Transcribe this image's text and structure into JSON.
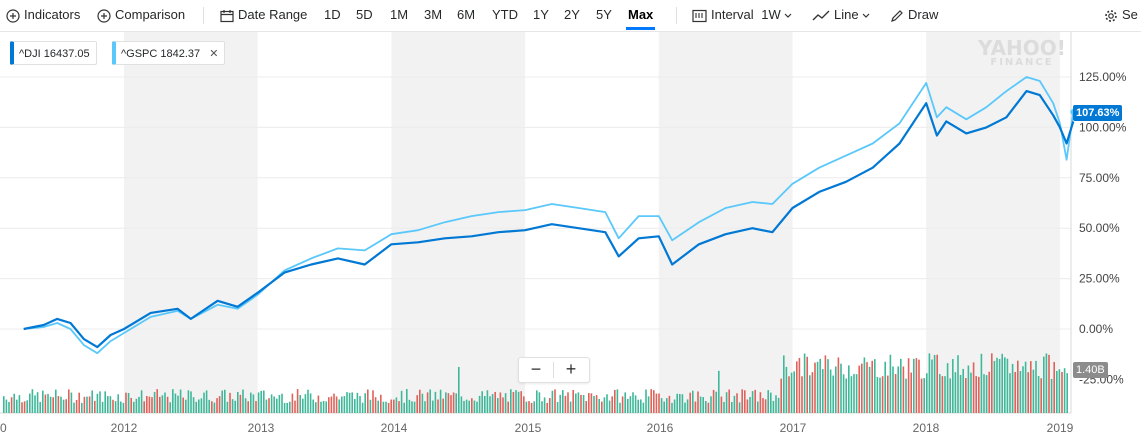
{
  "toolbar": {
    "indicators_label": "Indicators",
    "comparison_label": "Comparison",
    "date_range_label": "Date Range",
    "ranges": [
      "1D",
      "5D",
      "1M",
      "3M",
      "6M",
      "YTD",
      "1Y",
      "2Y",
      "5Y",
      "Max"
    ],
    "active_range": "Max",
    "interval_label": "Interval",
    "interval_value": "1W",
    "chart_type_label": "Line",
    "draw_label": "Draw",
    "settings_label": "Se"
  },
  "watermark": {
    "line1": "YAHOO!",
    "line2": "FINANCE"
  },
  "legend": [
    {
      "symbol": "^DJI",
      "value": "16437.05",
      "color": "#0078d4"
    },
    {
      "symbol": "^GSPC",
      "value": "1842.37",
      "color": "#5ac8fa",
      "closable": true
    }
  ],
  "zoom": {
    "minus": "−",
    "plus": "+"
  },
  "colors": {
    "dji": "#0078d4",
    "gspc": "#5ac8fa",
    "vol_up": "#3fb89a",
    "vol_down": "#e0625a",
    "band": "#f2f2f2"
  },
  "chart_data": {
    "type": "line",
    "x_axis": {
      "ticks": [
        "0",
        "2012",
        "2013",
        "2014",
        "2015",
        "2016",
        "2017",
        "2018",
        "2019"
      ]
    },
    "y_axis": {
      "ticks": [
        "125.00%",
        "100.00%",
        "75.00%",
        "50.00%",
        "25.00%",
        "0.00%",
        "-25.00%"
      ],
      "range": [
        -25,
        140
      ]
    },
    "series": [
      {
        "name": "^DJI",
        "x": [
          2011.25,
          2011.4,
          2011.5,
          2011.6,
          2011.7,
          2011.8,
          2011.9,
          2012,
          2012.2,
          2012.4,
          2012.5,
          2012.7,
          2012.85,
          2013,
          2013.2,
          2013.4,
          2013.6,
          2013.8,
          2014,
          2014.2,
          2014.4,
          2014.6,
          2014.8,
          2015,
          2015.2,
          2015.4,
          2015.6,
          2015.7,
          2015.85,
          2016,
          2016.1,
          2016.3,
          2016.5,
          2016.7,
          2016.85,
          2017,
          2017.2,
          2017.4,
          2017.6,
          2017.8,
          2018,
          2018.08,
          2018.15,
          2018.3,
          2018.45,
          2018.6,
          2018.75,
          2018.85,
          2018.95,
          2019,
          2019.05,
          2019.1
        ],
        "y": [
          0,
          2,
          5,
          3,
          -5,
          -9,
          -3,
          0,
          8,
          10,
          5,
          14,
          11,
          18,
          28,
          32,
          35,
          32,
          42,
          43,
          45,
          46,
          48,
          49,
          52,
          50,
          48,
          36,
          45,
          46,
          32,
          42,
          47,
          50,
          48,
          60,
          68,
          73,
          80,
          92,
          112,
          96,
          103,
          97,
          100,
          105,
          118,
          116,
          106,
          100,
          92,
          103
        ]
      },
      {
        "name": "^GSPC",
        "x": [
          2011.25,
          2011.4,
          2011.5,
          2011.6,
          2011.7,
          2011.8,
          2011.9,
          2012,
          2012.2,
          2012.4,
          2012.5,
          2012.7,
          2012.85,
          2013,
          2013.2,
          2013.4,
          2013.6,
          2013.8,
          2014,
          2014.2,
          2014.4,
          2014.6,
          2014.8,
          2015,
          2015.2,
          2015.4,
          2015.6,
          2015.7,
          2015.85,
          2016,
          2016.1,
          2016.3,
          2016.5,
          2016.7,
          2016.85,
          2017,
          2017.2,
          2017.4,
          2017.6,
          2017.8,
          2018,
          2018.08,
          2018.15,
          2018.3,
          2018.45,
          2018.6,
          2018.75,
          2018.85,
          2018.95,
          2019,
          2019.05,
          2019.1
        ],
        "y": [
          0,
          1,
          3,
          0,
          -8,
          -12,
          -6,
          -2,
          6,
          9,
          5,
          12,
          10,
          17,
          29,
          35,
          40,
          39,
          47,
          49,
          53,
          56,
          58,
          59,
          62,
          60,
          58,
          45,
          56,
          56,
          44,
          53,
          60,
          63,
          62,
          72,
          80,
          86,
          92,
          102,
          122,
          105,
          110,
          104,
          110,
          118,
          125,
          123,
          112,
          102,
          84,
          107.63
        ]
      }
    ],
    "last_value_label": "107.63%",
    "volume_label": "1.40B",
    "grid": true
  }
}
